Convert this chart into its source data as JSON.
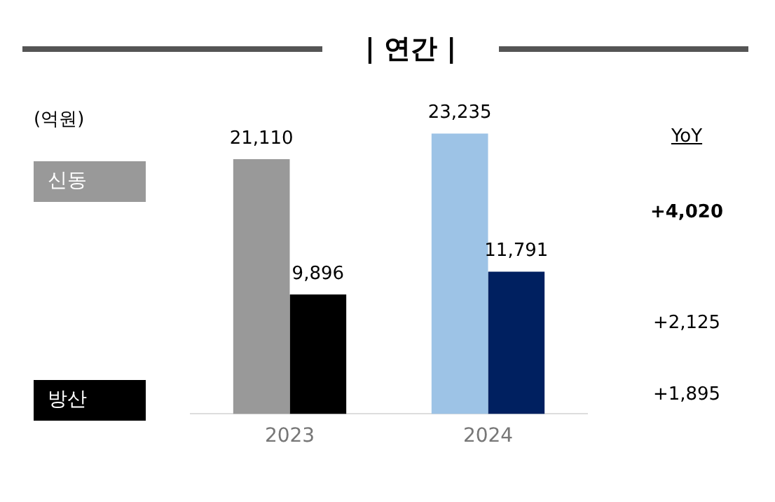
{
  "chart_data": {
    "type": "bar",
    "title": "| 연간 |",
    "categories": [
      "2023",
      "2024"
    ],
    "series": [
      {
        "name": "신동",
        "color": "#999999",
        "colors": [
          "#999999",
          "#9dc3e6"
        ],
        "values": [
          21110,
          23235
        ],
        "value_labels": [
          "21,110",
          "23,235"
        ]
      },
      {
        "name": "방산",
        "color": "#000000",
        "colors": [
          "#000000",
          "#002060"
        ],
        "values": [
          9896,
          11791
        ],
        "value_labels": [
          "9,896",
          "11,791"
        ]
      }
    ],
    "tick_labels": "x",
    "legend": "left",
    "grid": false,
    "annotations": [
      "(억원)",
      "YoY",
      "+4,020",
      "+2,125",
      "+1,895"
    ]
  }
}
